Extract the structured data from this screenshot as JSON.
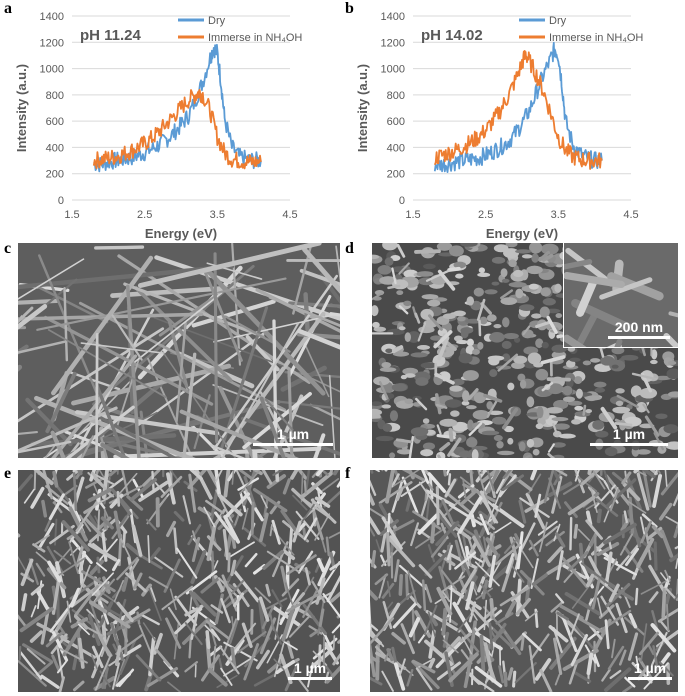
{
  "panels": {
    "a": "a",
    "b": "b",
    "c": "c",
    "d": "d",
    "e": "e",
    "f": "f"
  },
  "scale_bars": {
    "c": "1 µm",
    "d": "1 µm",
    "d_inset": "200 nm",
    "e": "1 µm",
    "f": "1 µm"
  },
  "chart_data": [
    {
      "type": "line",
      "annotation": "pH 11.24",
      "xlabel": "Energy (eV)",
      "ylabel": "Intensity (a.u.)",
      "xlim": [
        1.5,
        4.5
      ],
      "ylim": [
        0,
        1400
      ],
      "xticks": [
        "1.5",
        "2.5",
        "3.5",
        "4.5"
      ],
      "yticks": [
        "0",
        "200",
        "400",
        "600",
        "800",
        "1000",
        "1200",
        "1400"
      ],
      "legend_position": "top-right",
      "grid": true,
      "series": [
        {
          "name": "Dry",
          "color": "#5b9bd5",
          "x": [
            1.8,
            1.9,
            2.0,
            2.1,
            2.2,
            2.3,
            2.4,
            2.5,
            2.6,
            2.7,
            2.8,
            2.9,
            3.0,
            3.1,
            3.2,
            3.3,
            3.4,
            3.45,
            3.5,
            3.55,
            3.6,
            3.7,
            3.8,
            3.9,
            4.0,
            4.1
          ],
          "y": [
            280,
            270,
            290,
            300,
            310,
            320,
            340,
            360,
            390,
            420,
            460,
            510,
            570,
            640,
            760,
            900,
            1080,
            1160,
            1120,
            900,
            620,
            400,
            330,
            310,
            300,
            300
          ]
        },
        {
          "name": "Immerse in NH₄OH",
          "color": "#ed7d31",
          "x": [
            1.8,
            1.9,
            2.0,
            2.1,
            2.2,
            2.3,
            2.4,
            2.5,
            2.6,
            2.7,
            2.8,
            2.9,
            3.0,
            3.1,
            3.2,
            3.25,
            3.3,
            3.4,
            3.5,
            3.6,
            3.7,
            3.8,
            3.9,
            4.0,
            4.1
          ],
          "y": [
            300,
            310,
            320,
            330,
            350,
            370,
            400,
            430,
            470,
            520,
            580,
            640,
            700,
            760,
            800,
            820,
            800,
            680,
            480,
            360,
            310,
            300,
            290,
            290,
            290
          ]
        }
      ]
    },
    {
      "type": "line",
      "annotation": "pH 14.02",
      "xlabel": "Energy (eV)",
      "ylabel": "Intensity (a.u.)",
      "xlim": [
        1.5,
        4.5
      ],
      "ylim": [
        0,
        1400
      ],
      "xticks": [
        "1.5",
        "2.5",
        "3.5",
        "4.5"
      ],
      "yticks": [
        "0",
        "200",
        "400",
        "600",
        "800",
        "1000",
        "1200",
        "1400"
      ],
      "legend_position": "top-right",
      "grid": true,
      "series": [
        {
          "name": "Dry",
          "color": "#5b9bd5",
          "x": [
            1.8,
            1.9,
            2.0,
            2.1,
            2.2,
            2.3,
            2.4,
            2.5,
            2.6,
            2.7,
            2.8,
            2.9,
            3.0,
            3.1,
            3.2,
            3.3,
            3.4,
            3.45,
            3.5,
            3.55,
            3.6,
            3.7,
            3.8,
            3.9,
            4.0,
            4.1
          ],
          "y": [
            270,
            270,
            280,
            290,
            300,
            310,
            320,
            340,
            370,
            400,
            440,
            500,
            580,
            680,
            820,
            960,
            1080,
            1150,
            1100,
            880,
            600,
            420,
            350,
            320,
            300,
            300
          ]
        },
        {
          "name": "Immerse in NH₄OH",
          "color": "#ed7d31",
          "x": [
            1.8,
            1.9,
            2.0,
            2.1,
            2.2,
            2.3,
            2.4,
            2.5,
            2.6,
            2.7,
            2.8,
            2.9,
            3.0,
            3.05,
            3.1,
            3.2,
            3.3,
            3.4,
            3.5,
            3.6,
            3.7,
            3.8,
            3.9,
            4.0,
            4.1
          ],
          "y": [
            320,
            340,
            360,
            380,
            410,
            440,
            480,
            530,
            600,
            680,
            780,
            900,
            1040,
            1110,
            1060,
            950,
            820,
            650,
            480,
            380,
            330,
            310,
            300,
            300,
            300
          ]
        }
      ]
    }
  ]
}
